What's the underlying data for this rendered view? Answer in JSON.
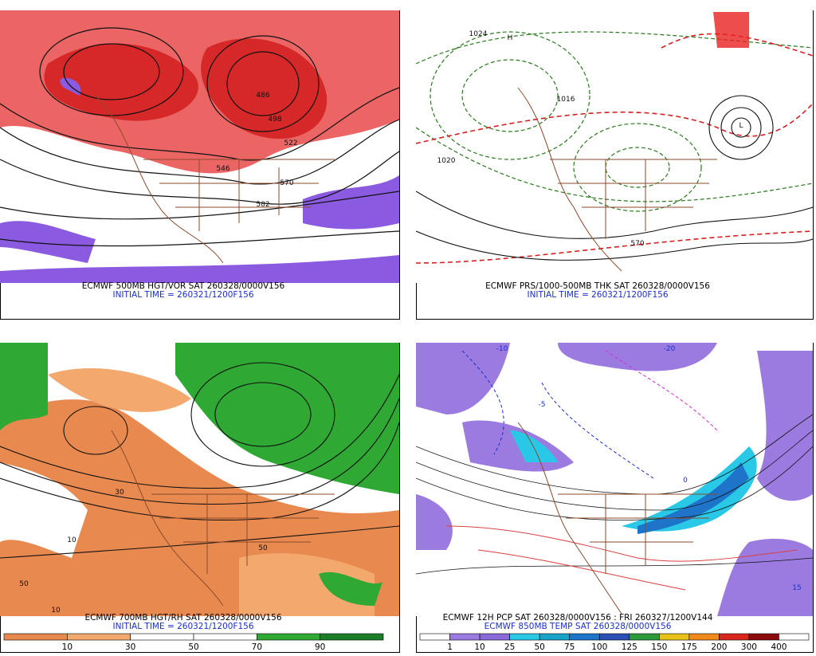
{
  "panels": [
    {
      "caption": [
        "ECMWF 500MB HGT/VOR SAT 260328/0000V156",
        "INITIAL TIME = 260321/1200F156"
      ],
      "contour_labels": [
        "486",
        "498",
        "522",
        "546",
        "570",
        "582"
      ]
    },
    {
      "caption": [
        "ECMWF PRS/1000-500MB THK SAT 260328/0000V156",
        "INITIAL TIME = 260321/1200F156"
      ],
      "contour_labels": [
        "1020",
        "1024",
        "1016",
        "H",
        "L",
        "570"
      ]
    },
    {
      "caption": [
        "ECMWF 700MB HGT/RH SAT 260328/0000V156",
        "INITIAL TIME = 260321/1200F156"
      ],
      "contour_labels": [
        "10",
        "50",
        "30",
        "50",
        "10"
      ],
      "colorbar": {
        "labels": [
          10,
          30,
          50,
          70,
          90
        ],
        "colors": [
          "#e88a4f",
          "#f3a86e",
          "#ffffff",
          "#ffffff",
          "#2fa834",
          "#1b7f2a"
        ]
      }
    },
    {
      "caption": [
        "ECMWF 12H PCP SAT 260328/0000V156 : FRI 260327/1200V144",
        "ECMWF 850MB TEMP SAT 260328/0000V156"
      ],
      "contour_labels": [
        "-10",
        "-5",
        "0",
        "-20",
        "15"
      ],
      "colorbar": {
        "labels": [
          1,
          10,
          25,
          50,
          75,
          100,
          125,
          150,
          175,
          200,
          300,
          400
        ],
        "colors": [
          "#ffffff",
          "#9b7be0",
          "#8a6ad8",
          "#29c8e6",
          "#1aa3c8",
          "#1d74c9",
          "#2a4fb5",
          "#2d9a3a",
          "#e8c21a",
          "#f08a1c",
          "#d8261e",
          "#8a0c0c",
          "#ffffff"
        ]
      }
    }
  ]
}
